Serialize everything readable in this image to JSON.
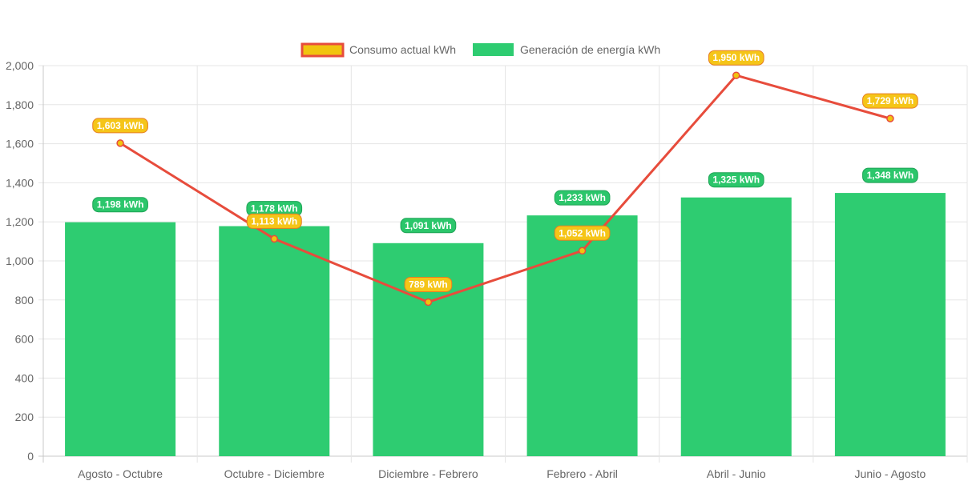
{
  "chart_data": {
    "type": "bar",
    "categories": [
      "Agosto - Octubre",
      "Octubre - Diciembre",
      "Diciembre - Febrero",
      "Febrero - Abril",
      "Abril - Junio",
      "Junio - Agosto"
    ],
    "series": [
      {
        "name": "Consumo actual kWh",
        "type": "line",
        "values": [
          1603,
          1113,
          789,
          1052,
          1950,
          1729
        ],
        "labels": [
          "1,603 kWh",
          "1,113 kWh",
          "789 kWh",
          "1,052 kWh",
          "1,950 kWh",
          "1,729 kWh"
        ],
        "color": "#e74c3c",
        "fill": "#f1c40f"
      },
      {
        "name": "Generación de energía kWh",
        "type": "bar",
        "values": [
          1198,
          1178,
          1091,
          1233,
          1325,
          1348
        ],
        "labels": [
          "1,198 kWh",
          "1,178 kWh",
          "1,091 kWh",
          "1,233 kWh",
          "1,325 kWh",
          "1,348 kWh"
        ],
        "color": "#2ecc71"
      }
    ],
    "ylim": [
      0,
      2000
    ],
    "yticks": [
      0,
      200,
      400,
      600,
      800,
      1000,
      1200,
      1400,
      1600,
      1800,
      2000
    ],
    "ytick_labels": [
      "0",
      "200",
      "400",
      "600",
      "800",
      "1,000",
      "1,200",
      "1,400",
      "1,600",
      "1,800",
      "2,000"
    ],
    "grid": true,
    "legend_position": "top"
  }
}
